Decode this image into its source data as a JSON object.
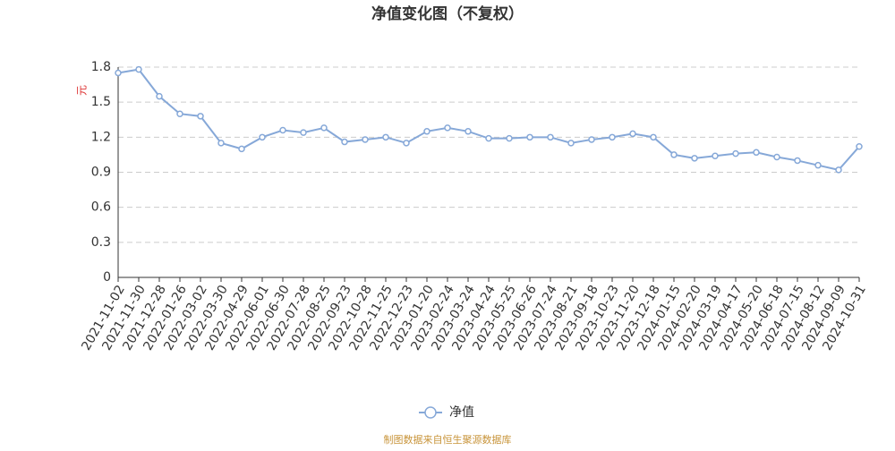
{
  "chart_data": {
    "type": "line",
    "title": "净值变化图（不复权）",
    "y_label": "元",
    "categories": [
      "2021-11-02",
      "2021-11-30",
      "2021-12-28",
      "2022-01-26",
      "2022-03-02",
      "2022-03-30",
      "2022-04-29",
      "2022-06-01",
      "2022-06-30",
      "2022-07-28",
      "2022-08-25",
      "2022-09-23",
      "2022-10-28",
      "2022-11-25",
      "2022-12-23",
      "2023-01-20",
      "2023-02-24",
      "2023-03-24",
      "2023-04-24",
      "2023-05-25",
      "2023-06-26",
      "2023-07-24",
      "2023-08-21",
      "2023-09-18",
      "2023-10-23",
      "2023-11-20",
      "2023-12-18",
      "2024-01-15",
      "2024-02-20",
      "2024-03-19",
      "2024-04-17",
      "2024-05-20",
      "2024-06-18",
      "2024-07-15",
      "2024-08-12",
      "2024-09-09",
      "2024-10-31"
    ],
    "series": [
      {
        "name": "净值",
        "color": "#86a8d8",
        "values": [
          1.75,
          1.78,
          1.55,
          1.4,
          1.38,
          1.15,
          1.1,
          1.2,
          1.26,
          1.24,
          1.28,
          1.16,
          1.18,
          1.2,
          1.15,
          1.25,
          1.28,
          1.25,
          1.19,
          1.19,
          1.2,
          1.2,
          1.15,
          1.18,
          1.2,
          1.23,
          1.2,
          1.05,
          1.02,
          1.04,
          1.06,
          1.07,
          1.03,
          1.0,
          0.96,
          0.92,
          1.12
        ]
      }
    ],
    "ylim": [
      0,
      1.8
    ],
    "yticks": [
      0,
      0.3,
      0.6,
      0.9,
      1.2,
      1.5,
      1.8
    ],
    "grid": true,
    "legend": "bottom",
    "source": "制图数据来自恒生聚源数据库"
  }
}
